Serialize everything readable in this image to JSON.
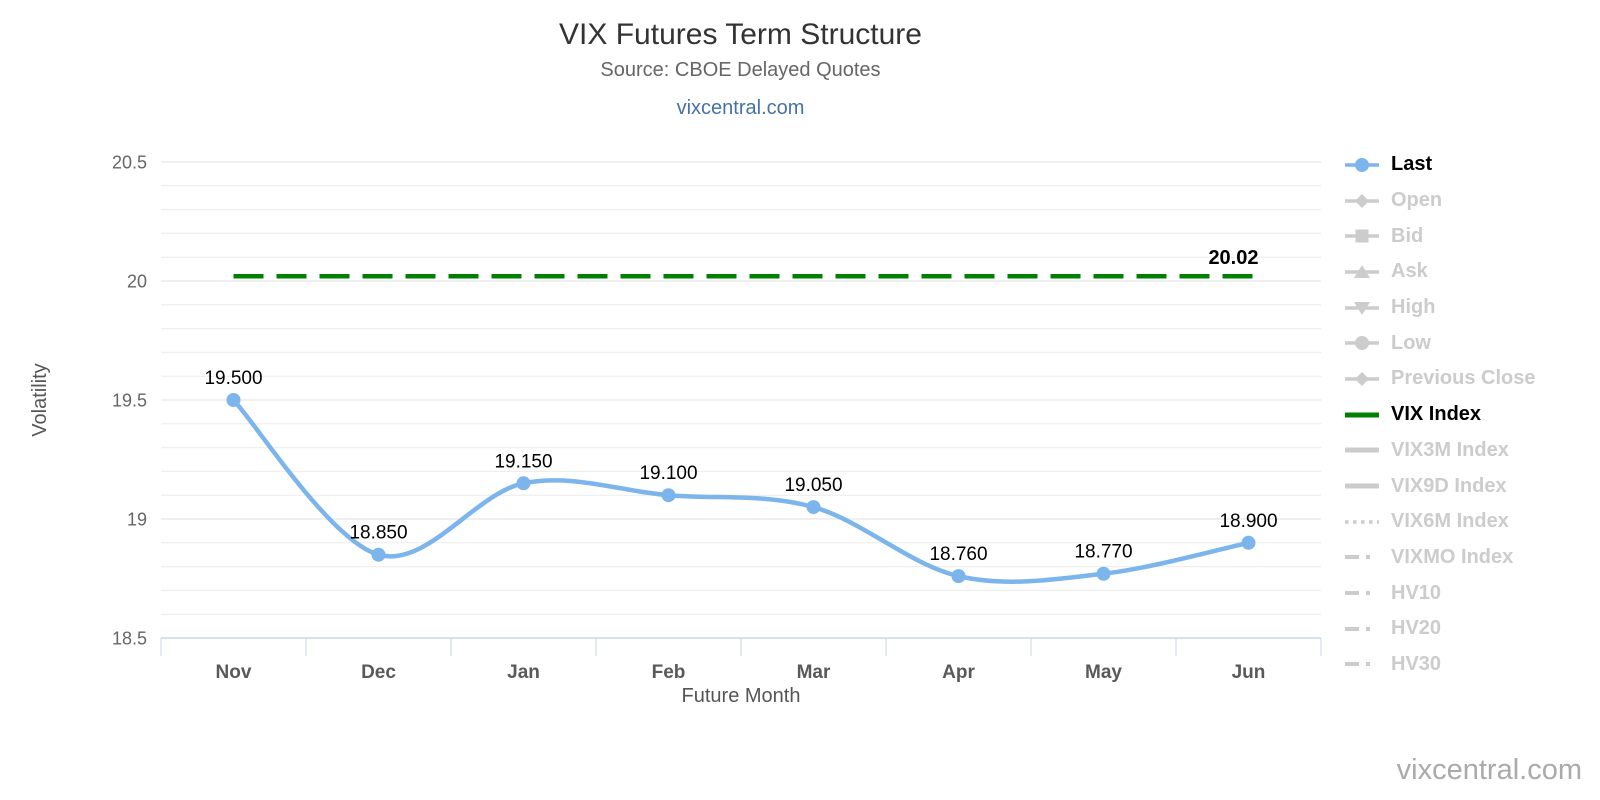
{
  "header": {
    "title": "VIX Futures Term Structure",
    "subtitle": "Source: CBOE Delayed Quotes",
    "link": "vixcentral.com"
  },
  "watermark": "vixcentral.com",
  "chart_data": {
    "type": "line",
    "title": "VIX Futures Term Structure",
    "subtitle": "Source: CBOE Delayed Quotes",
    "xlabel": "Future Month",
    "ylabel": "Volatility",
    "categories": [
      "Nov",
      "Dec",
      "Jan",
      "Feb",
      "Mar",
      "Apr",
      "May",
      "Jun"
    ],
    "series": [
      {
        "name": "Last",
        "type": "spline",
        "color": "#7cb5ec",
        "marker": "circle",
        "values": [
          19.5,
          18.85,
          19.15,
          19.1,
          19.05,
          18.76,
          18.77,
          18.9
        ],
        "labels": [
          "19.500",
          "18.850",
          "19.150",
          "19.100",
          "19.050",
          "18.760",
          "18.770",
          "18.900"
        ]
      },
      {
        "name": "VIX Index",
        "type": "horizontal-dashed-line",
        "color": "#008000",
        "value": 20.02,
        "label": "20.02"
      }
    ],
    "ylim": [
      18.5,
      20.5
    ],
    "yticks": [
      {
        "value": 18.5,
        "label": "18.5"
      },
      {
        "value": 19,
        "label": "19"
      },
      {
        "value": 19.5,
        "label": "19.5"
      },
      {
        "value": 20,
        "label": "20"
      },
      {
        "value": 20.5,
        "label": "20.5"
      }
    ],
    "minor_grid_step": 0.1,
    "grid": true,
    "legend_position": "right",
    "inactive_color": "#cccccc",
    "legend": [
      {
        "label": "Last",
        "active": true,
        "color": "#7cb5ec",
        "style": "marker",
        "marker": "circle"
      },
      {
        "label": "Open",
        "active": false,
        "style": "marker",
        "marker": "diamond"
      },
      {
        "label": "Bid",
        "active": false,
        "style": "marker",
        "marker": "square"
      },
      {
        "label": "Ask",
        "active": false,
        "style": "marker",
        "marker": "triangle-up"
      },
      {
        "label": "High",
        "active": false,
        "style": "marker",
        "marker": "triangle-down"
      },
      {
        "label": "Low",
        "active": false,
        "style": "marker",
        "marker": "circle"
      },
      {
        "label": "Previous Close",
        "active": false,
        "style": "marker",
        "marker": "diamond"
      },
      {
        "label": "VIX Index",
        "active": true,
        "color": "#008000",
        "style": "solid-line"
      },
      {
        "label": "VIX3M Index",
        "active": false,
        "style": "solid-line"
      },
      {
        "label": "VIX9D Index",
        "active": false,
        "style": "solid-line"
      },
      {
        "label": "VIX6M Index",
        "active": false,
        "style": "dotted-line"
      },
      {
        "label": "VIXMO Index",
        "active": false,
        "style": "dash-dot-line"
      },
      {
        "label": "HV10",
        "active": false,
        "style": "dash-dot-line"
      },
      {
        "label": "HV20",
        "active": false,
        "style": "dash-dot-line"
      },
      {
        "label": "HV30",
        "active": false,
        "style": "dash-dot-line"
      }
    ]
  }
}
